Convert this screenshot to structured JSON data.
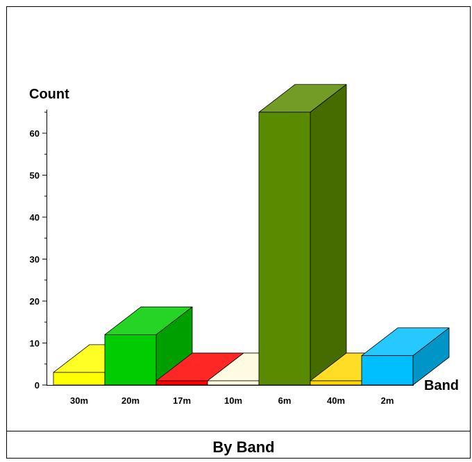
{
  "chart_data": {
    "type": "bar",
    "title": "By Band",
    "xlabel": "Band",
    "ylabel": "Count",
    "categories": [
      "30m",
      "20m",
      "17m",
      "10m",
      "6m",
      "40m",
      "2m"
    ],
    "values": [
      3,
      12,
      1,
      1,
      65,
      1,
      7
    ],
    "ylim": [
      0,
      65
    ],
    "yticks": [
      "0",
      "10",
      "20",
      "30",
      "40",
      "50",
      "60"
    ],
    "colors": {
      "30m": "#ffff00",
      "20m": "#00cc00",
      "17m": "#ff0000",
      "10m": "#fffbdc",
      "6m": "#5a8a00",
      "40m": "#ffd700",
      "2m": "#00bfff"
    },
    "grid": false,
    "legend": "none"
  }
}
